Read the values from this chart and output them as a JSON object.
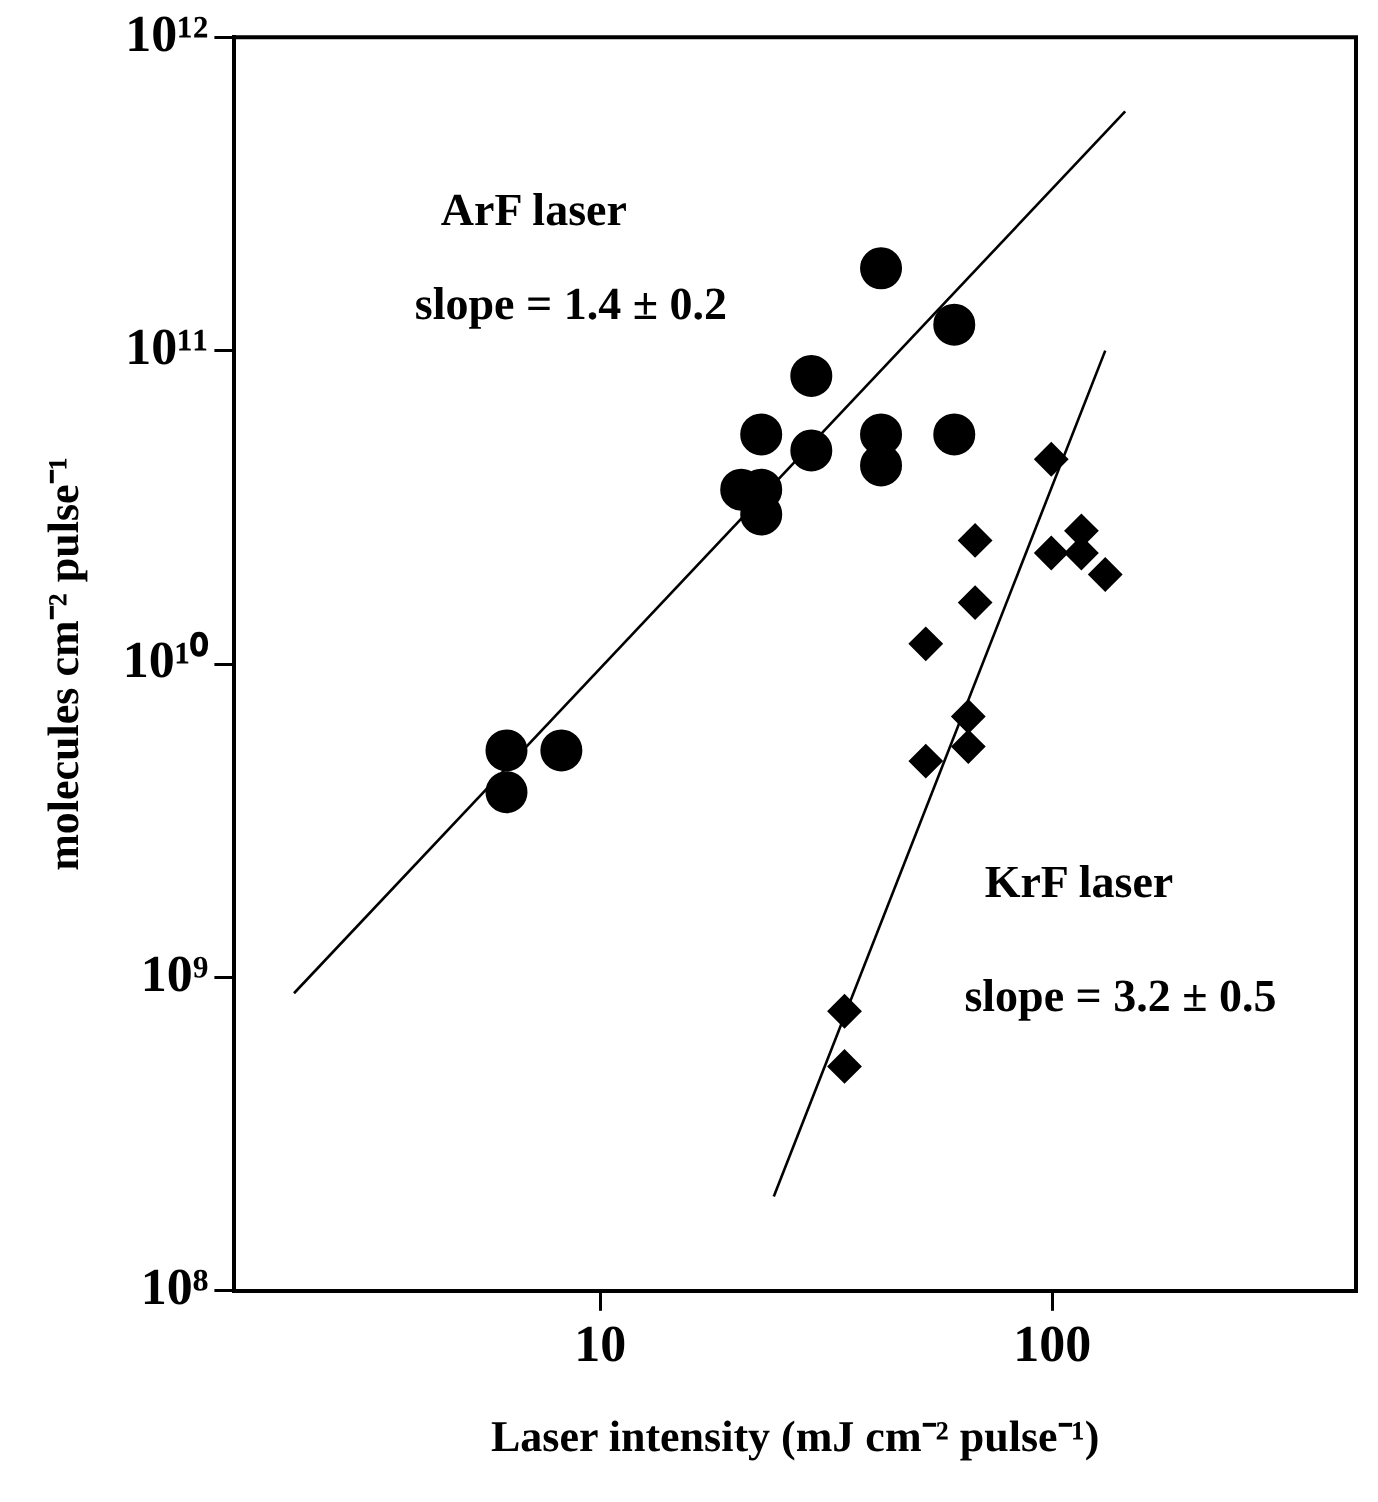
{
  "chart_data": {
    "type": "scatter",
    "xlabel": "Laser intensity (mJ cm⁻² pulse⁻¹)",
    "ylabel": "molecules cm⁻² pulse⁻¹",
    "log": "xy",
    "grid": false,
    "legend": false,
    "xlim": [
      1.55,
      470
    ],
    "xticks": [
      10,
      100
    ],
    "ylim": [
      100000000.0,
      1000000000000.0
    ],
    "yticks": [
      {
        "value": 100000000.0,
        "label": "10⁸"
      },
      {
        "value": 1000000000.0,
        "label": "10⁹"
      },
      {
        "value": 10000000000.0,
        "label": "10¹⁰"
      },
      {
        "value": 100000000000.0,
        "label": "10¹¹"
      },
      {
        "value": 1000000000000.0,
        "label": "10¹²"
      }
    ],
    "annotations": [
      "ArF laser",
      "slope = 1.4 ± 0.2",
      "KrF laser",
      "slope = 3.2 ± 0.5"
    ],
    "series": [
      {
        "type": "scatter",
        "marker": "circle",
        "color": "#000000",
        "x": [
          6.2,
          6.2,
          8.2,
          20.5,
          22.7,
          22.7,
          22.7,
          29.3,
          29.3,
          41.8,
          41.8,
          41.8,
          60.7,
          60.7
        ],
        "values": [
          5300000000.0,
          3900000000.0,
          5300000000.0,
          36000000000.0,
          36000000000.0,
          54000000000.0,
          30000000000.0,
          48000000000.0,
          83000000000.0,
          183000000000.0,
          54000000000.0,
          43000000000.0,
          121000000000.0,
          54000000000.0
        ]
      },
      {
        "type": "scatter",
        "marker": "diamond",
        "color": "#000000",
        "x": [
          99.5,
          67.5,
          67.5,
          52.5,
          65.2,
          65.2,
          52.5,
          99.5,
          116,
          116,
          131,
          34.7,
          34.7
        ],
        "values": [
          45000000000.0,
          24800000000.0,
          15700000000.0,
          11600000000.0,
          6800000000.0,
          5450000000.0,
          4900000000.0,
          22600000000.0,
          26600000000.0,
          22600000000.0,
          19300000000.0,
          780000000.0,
          520000000.0
        ]
      },
      {
        "type": "line",
        "marker": "none",
        "color": "#000000",
        "x": [
          2.1,
          145
        ],
        "values": [
          890000000.0,
          580000000000.0
        ]
      },
      {
        "type": "line",
        "marker": "none",
        "color": "#000000",
        "x": [
          24.2,
          131
        ],
        "values": [
          200000000.0,
          100000000000.0
        ]
      }
    ]
  }
}
